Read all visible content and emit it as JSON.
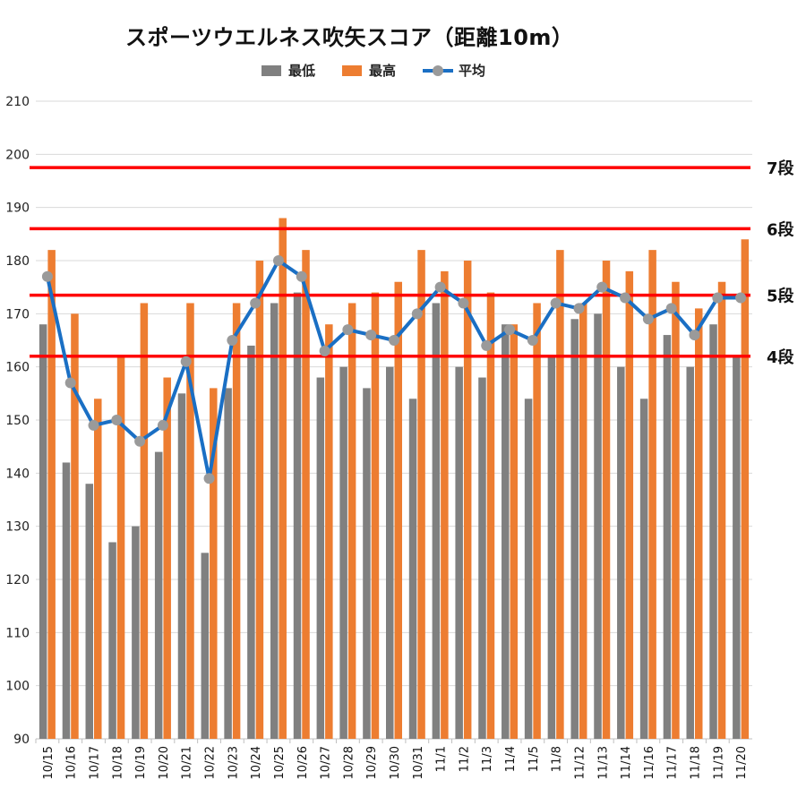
{
  "chart_data": {
    "type": "bar",
    "title": "スポーツウエルネス吹矢スコア（距離10m）",
    "categories": [
      "10/15",
      "10/16",
      "10/17",
      "10/18",
      "10/19",
      "10/20",
      "10/21",
      "10/22",
      "10/23",
      "10/24",
      "10/25",
      "10/26",
      "10/27",
      "10/28",
      "10/29",
      "10/30",
      "10/31",
      "11/1",
      "11/2",
      "11/3",
      "11/4",
      "11/5",
      "11/8",
      "11/12",
      "11/13",
      "11/14",
      "11/16",
      "11/17",
      "11/18",
      "11/19",
      "11/20"
    ],
    "series": [
      {
        "name": "最低",
        "type": "bar",
        "color": "#808080",
        "values": [
          168,
          142,
          138,
          127,
          130,
          144,
          155,
          125,
          156,
          164,
          172,
          174,
          158,
          160,
          156,
          160,
          154,
          172,
          160,
          158,
          168,
          154,
          162,
          169,
          170,
          160,
          154,
          166,
          160,
          168,
          162
        ]
      },
      {
        "name": "最高",
        "type": "bar",
        "color": "#ed7d31",
        "values": [
          182,
          170,
          154,
          162,
          172,
          158,
          172,
          156,
          172,
          180,
          188,
          182,
          168,
          172,
          174,
          176,
          182,
          178,
          180,
          174,
          168,
          172,
          182,
          172,
          180,
          178,
          182,
          176,
          171,
          176,
          184
        ]
      },
      {
        "name": "平均",
        "type": "line",
        "color": "#1a6fc4",
        "marker_color": "#9a9a9a",
        "values": [
          177,
          157,
          149,
          150,
          146,
          149,
          161,
          139,
          165,
          172,
          180,
          177,
          163,
          167,
          166,
          165,
          170,
          175,
          172,
          164,
          167,
          165,
          172,
          171,
          175,
          173,
          169,
          171,
          166,
          173,
          173
        ]
      }
    ],
    "ylim": [
      90,
      210
    ],
    "yticks": [
      90,
      100,
      110,
      120,
      130,
      140,
      150,
      160,
      170,
      180,
      190,
      200,
      210
    ],
    "gridlines": true,
    "legend_position": "top",
    "reference_lines": [
      {
        "label": "7段",
        "value": 197.5,
        "color": "#ff0000"
      },
      {
        "label": "6段",
        "value": 186,
        "color": "#ff0000"
      },
      {
        "label": "5段",
        "value": 173.5,
        "color": "#ff0000"
      },
      {
        "label": "4段",
        "value": 162,
        "color": "#ff0000"
      }
    ]
  }
}
